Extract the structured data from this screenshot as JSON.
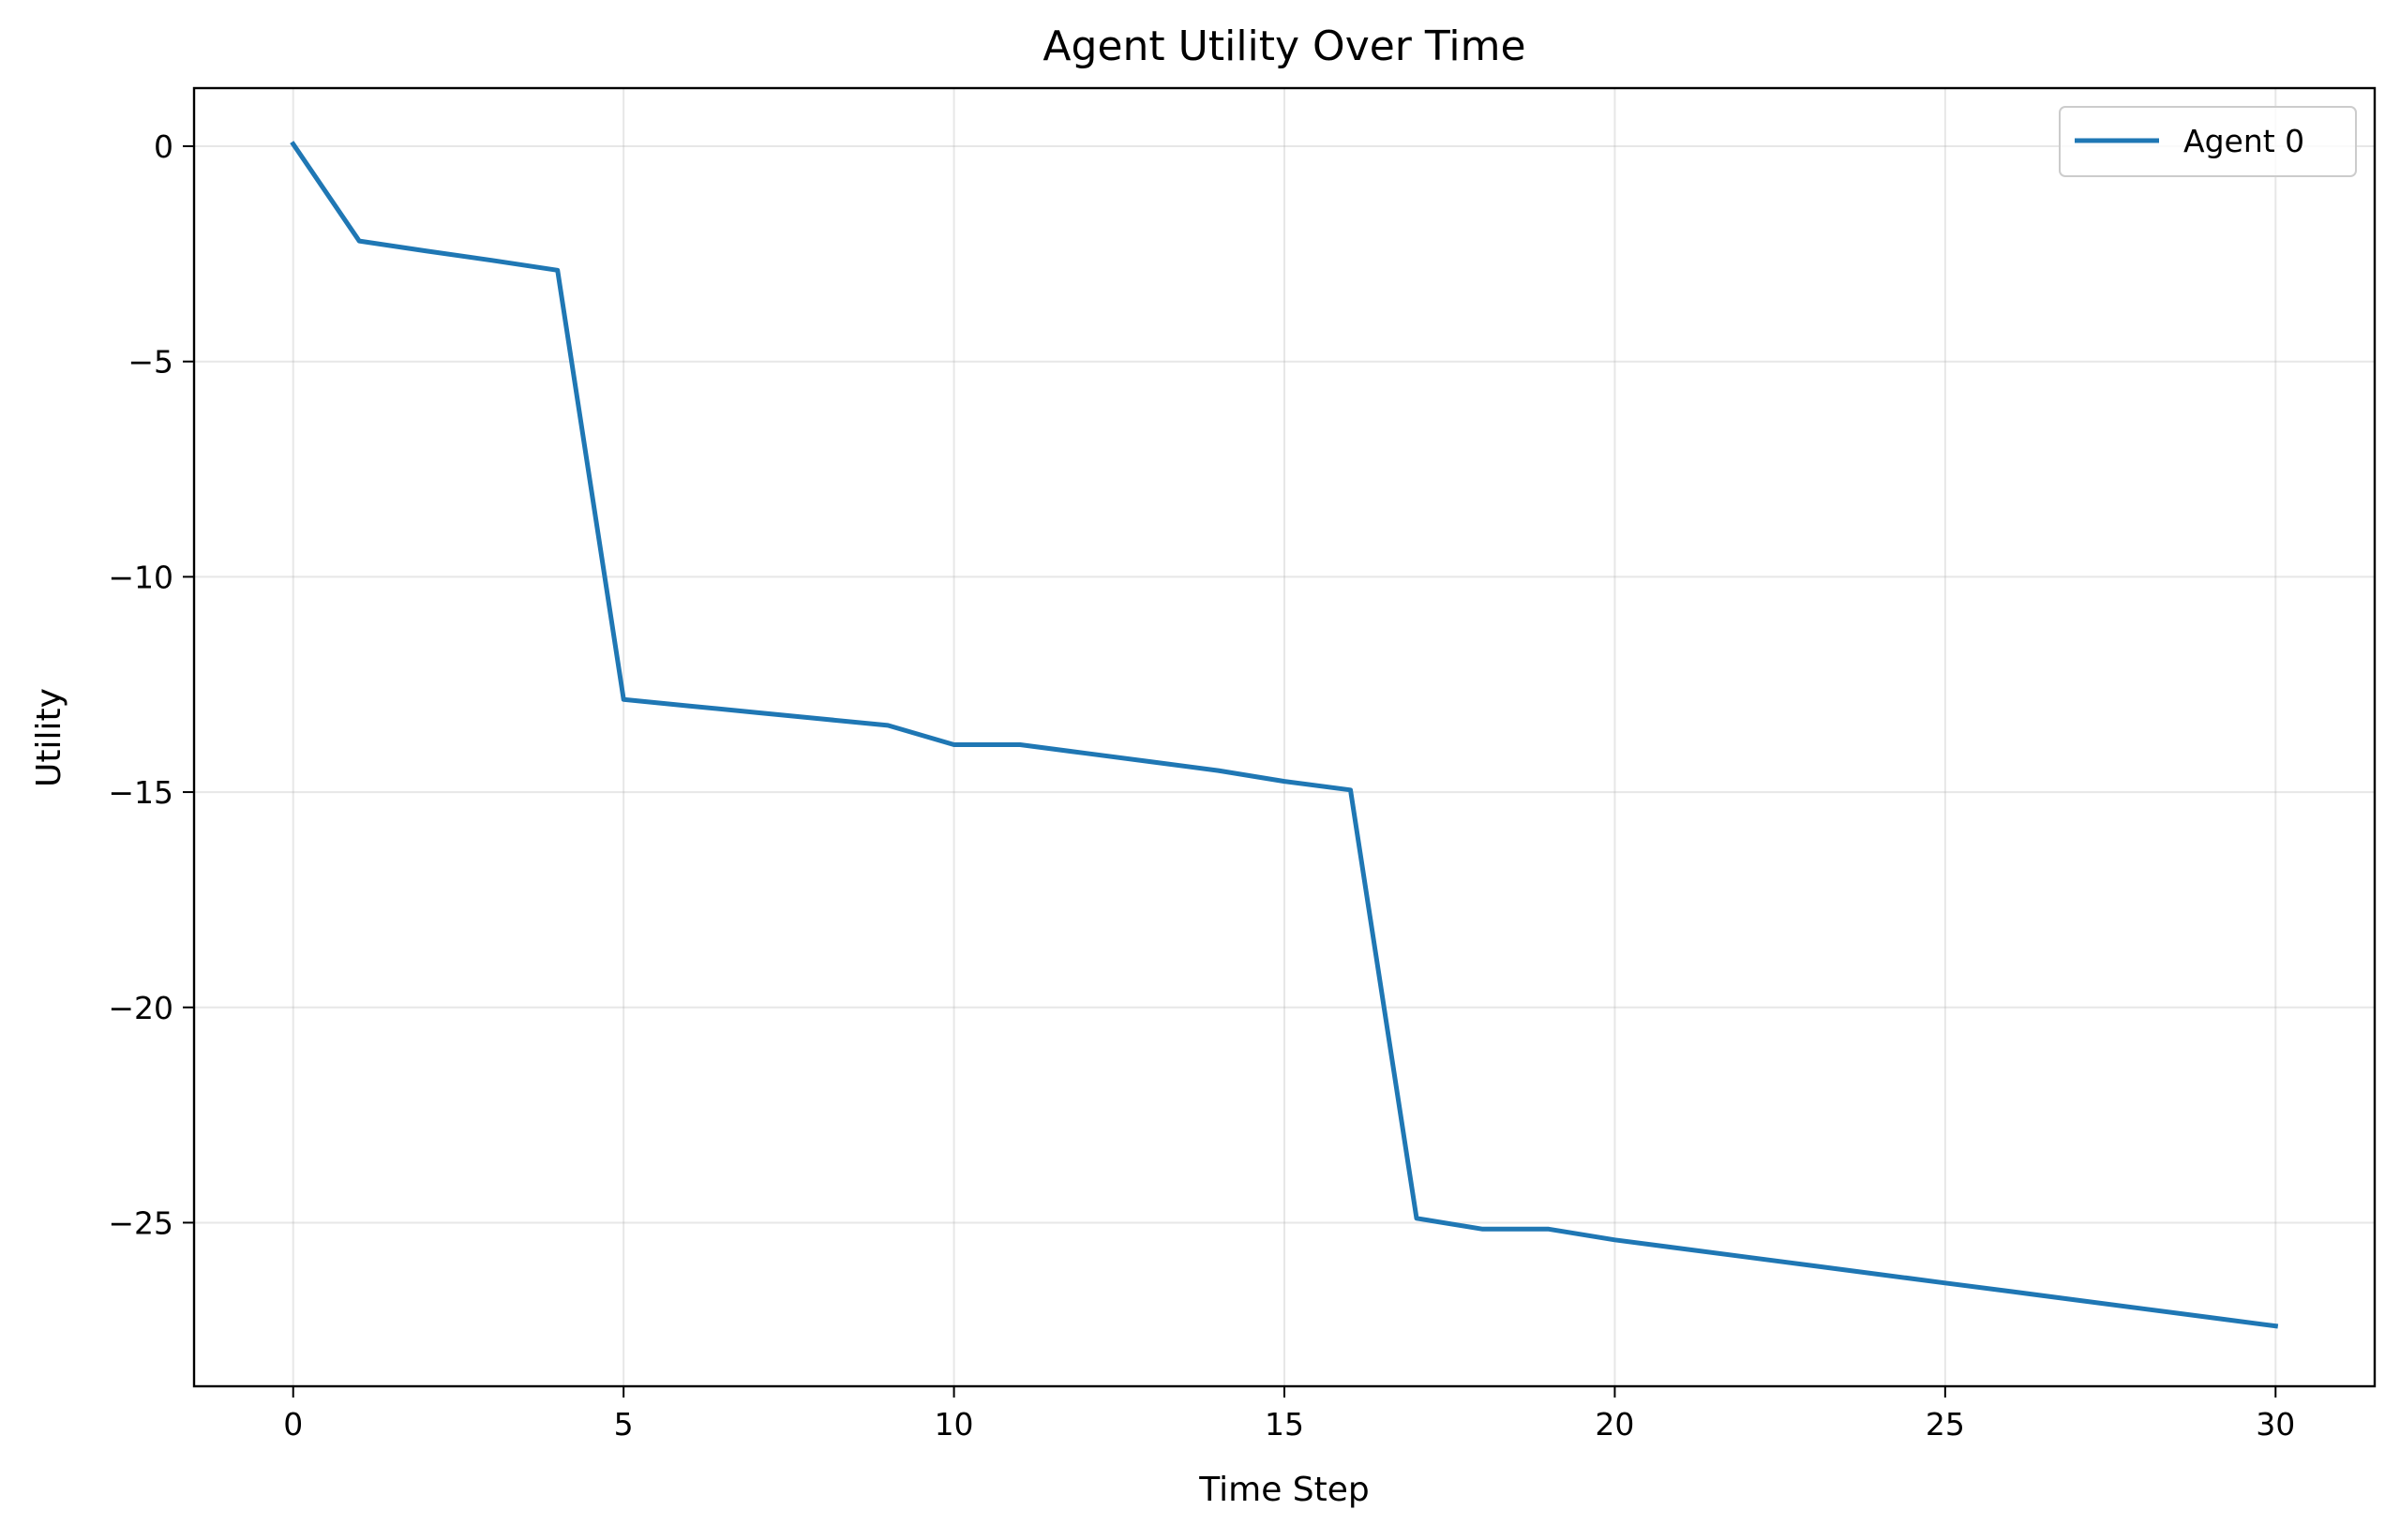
{
  "chart_data": {
    "type": "line",
    "title": "Agent Utility Over Time",
    "xlabel": "Time Step",
    "ylabel": "Utility",
    "xlim": [
      -1.5,
      31.5
    ],
    "ylim": [
      -28.8,
      1.35
    ],
    "xticks": [
      0,
      5,
      10,
      15,
      20,
      25,
      30
    ],
    "yticks": [
      0,
      -5,
      -10,
      -15,
      -20,
      -25
    ],
    "grid": true,
    "legend_position": "top-right",
    "series": [
      {
        "name": "Agent 0",
        "color": "#1f77b4",
        "x": [
          0,
          1,
          2,
          3,
          4,
          5,
          6,
          7,
          8,
          9,
          10,
          11,
          12,
          13,
          14,
          15,
          16,
          17,
          18,
          19,
          20,
          21,
          22,
          23,
          24,
          25,
          26,
          27,
          28,
          29,
          30
        ],
        "y": [
          0.05,
          -2.2,
          -2.43,
          -2.65,
          -2.88,
          -12.85,
          -13.0,
          -13.15,
          -13.3,
          -13.45,
          -13.9,
          -13.9,
          -14.1,
          -14.3,
          -14.5,
          -14.75,
          -14.95,
          -24.9,
          -25.15,
          -25.15,
          -25.4,
          -25.6,
          -25.8,
          -26.0,
          -26.2,
          -26.4,
          -26.6,
          -26.8,
          -27.0,
          -27.2,
          -27.4
        ]
      }
    ]
  }
}
